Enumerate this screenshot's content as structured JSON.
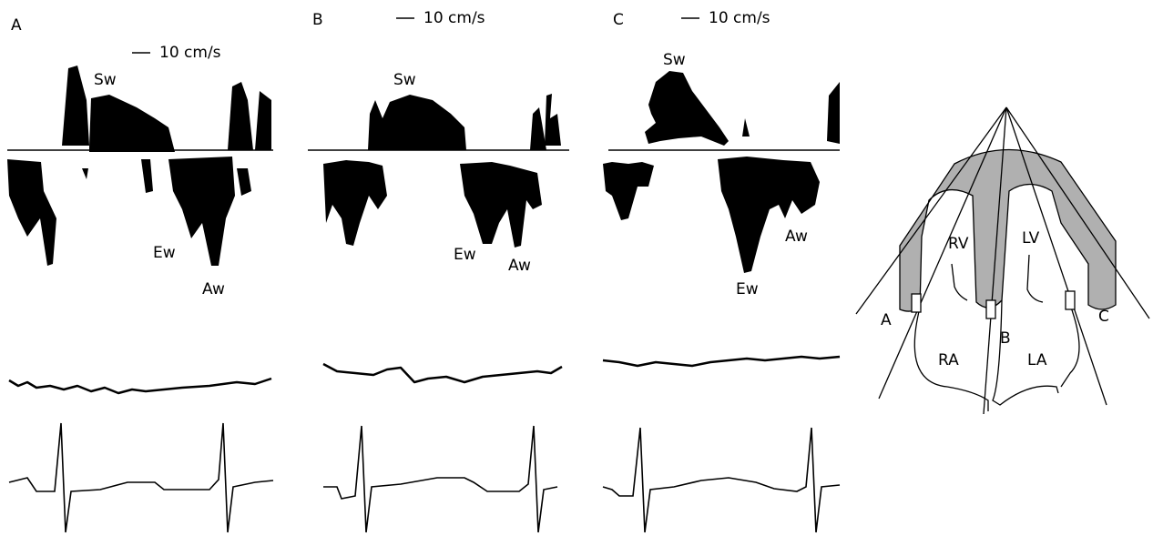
{
  "panels": [
    {
      "label": "A",
      "scale": "10 cm/s",
      "sw": "Sw",
      "ew": "Ew",
      "aw": "Aw"
    },
    {
      "label": "B",
      "scale": "10 cm/s",
      "sw": "Sw",
      "ew": "Ew",
      "aw": "Aw"
    },
    {
      "label": "C",
      "scale": "10 cm/s",
      "sw": "Sw",
      "ew": "Ew",
      "aw": "Aw"
    }
  ],
  "diagram": {
    "rv": "RV",
    "lv": "LV",
    "ra": "RA",
    "la": "LA",
    "a": "A",
    "b": "B",
    "c": "C"
  }
}
